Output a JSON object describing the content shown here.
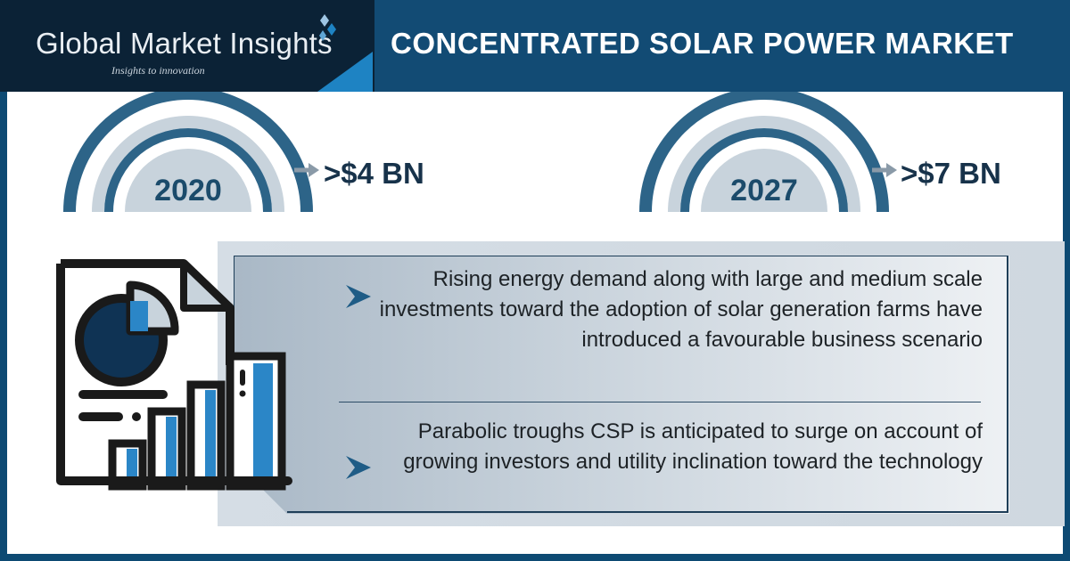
{
  "header": {
    "brand_name": "Global Market Insights",
    "tagline": "Insights to innovation",
    "title": "CONCENTRATED SOLAR POWER MARKET"
  },
  "stats": [
    {
      "year": "2020",
      "value": ">$4 BN"
    },
    {
      "year": "2027",
      "value": ">$7 BN"
    }
  ],
  "highlights": [
    {
      "text": "Rising energy demand along with large and medium scale investments toward the adoption of solar generation farms have introduced a favourable business scenario"
    },
    {
      "text": "Parabolic troughs CSP is anticipated to surge on account of growing investors and utility inclination toward the technology"
    }
  ],
  "icons": [
    "logo-diamond-icon",
    "report-chart-icon",
    "chevron-right-icon",
    "arrow-right-icon"
  ],
  "colors": {
    "header_bg": "#124b74",
    "logo_bg": "#0b2236",
    "accent_blue": "#1e83c3",
    "arc_dark": "#2d6488",
    "arc_light": "#c8d3dc",
    "text_dark": "#17324a"
  }
}
